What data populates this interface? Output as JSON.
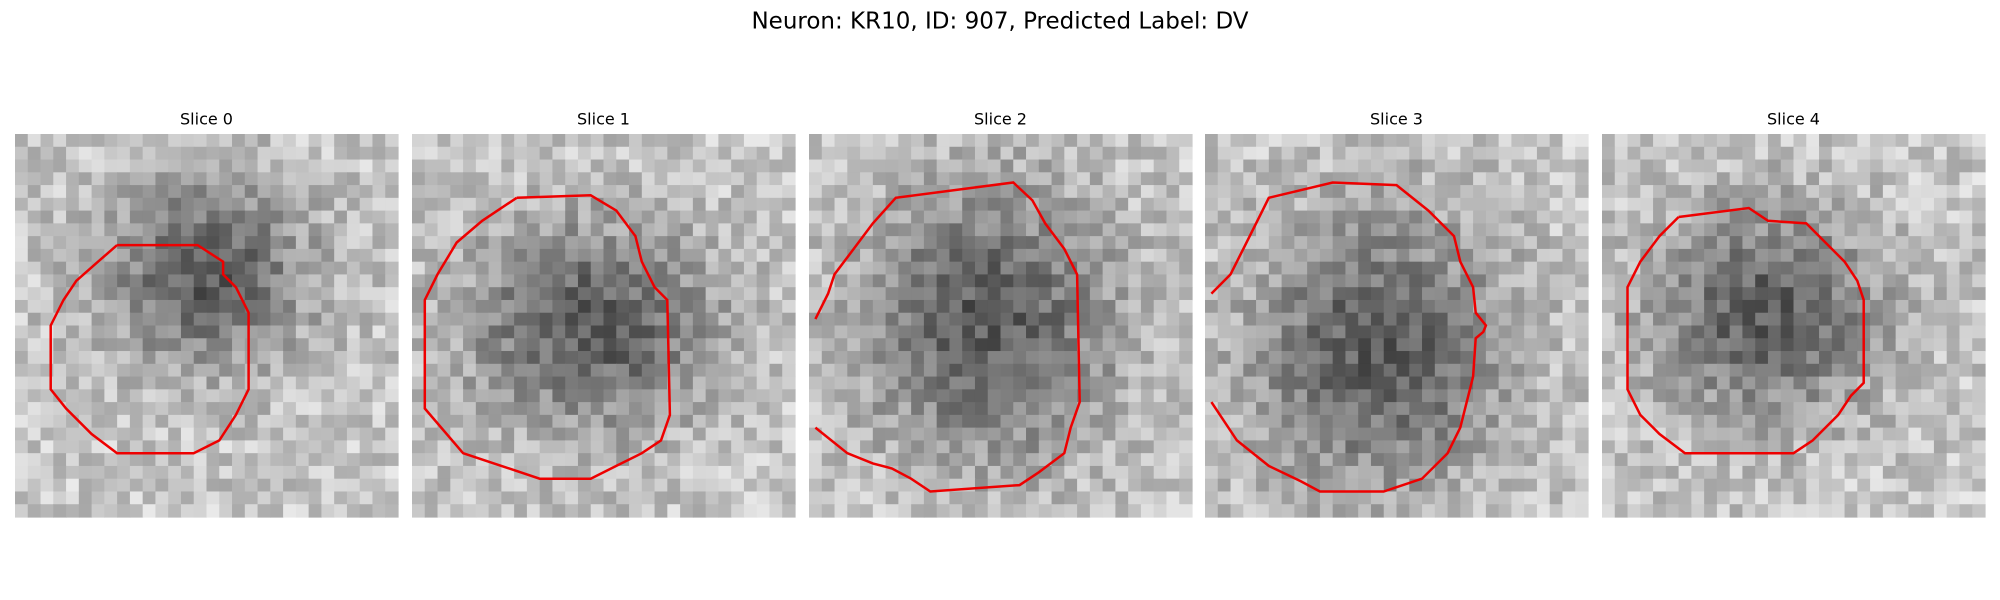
{
  "title": "Neuron: KR10, ID: 907, Predicted Label: DV",
  "panels": [
    {
      "title": "Slice 0"
    },
    {
      "title": "Slice 1"
    },
    {
      "title": "Slice 2"
    },
    {
      "title": "Slice 3"
    },
    {
      "title": "Slice 4"
    }
  ]
}
